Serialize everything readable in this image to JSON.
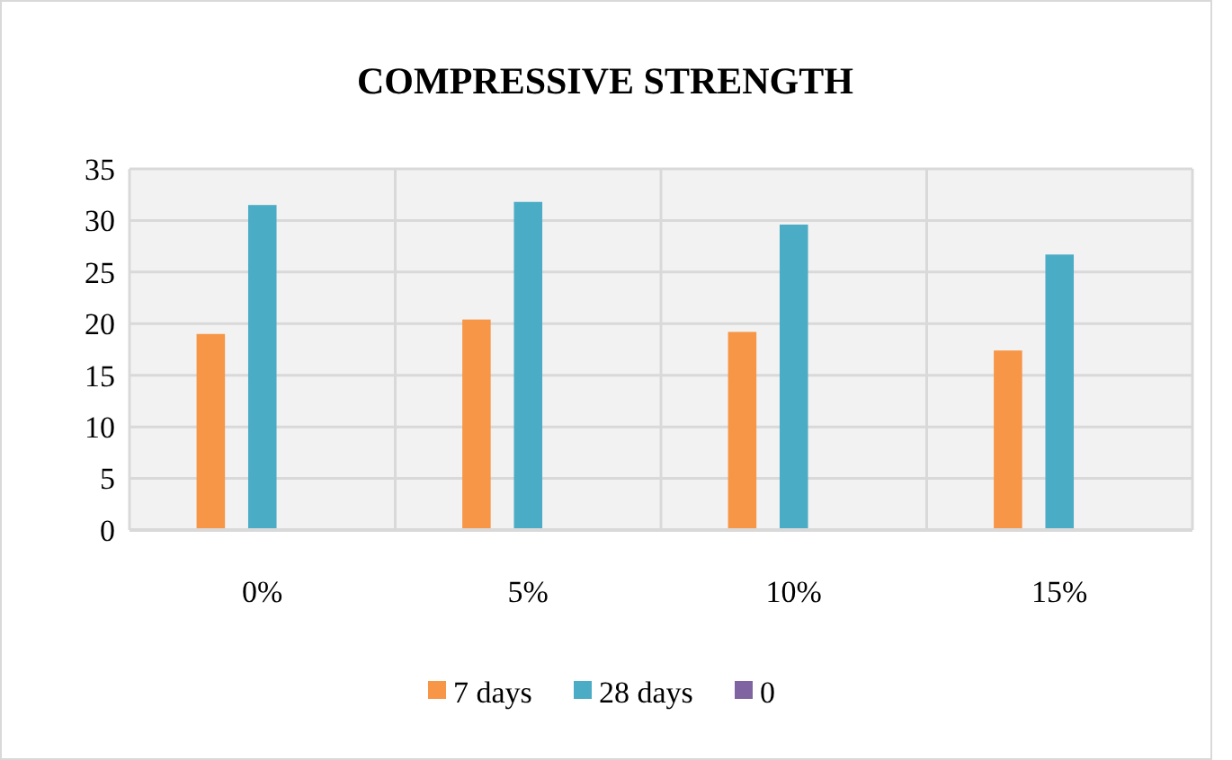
{
  "chart_data": {
    "type": "bar",
    "title": "COMPRESSIVE STRENGTH",
    "categories": [
      "0%",
      "5%",
      "10%",
      "15%"
    ],
    "series": [
      {
        "name": "7 days",
        "color": "#f79646",
        "values": [
          19.0,
          20.4,
          19.2,
          17.4
        ]
      },
      {
        "name": "28 days",
        "color": "#4bacc6",
        "values": [
          31.5,
          31.8,
          29.6,
          26.7
        ]
      },
      {
        "name": "0",
        "color": "#8064a2",
        "values": [
          0,
          0,
          0,
          0
        ]
      }
    ],
    "ylim": [
      0,
      35
    ],
    "yticks": [
      0,
      5,
      10,
      15,
      20,
      25,
      30,
      35
    ],
    "grid": true,
    "legend": "bottom"
  }
}
